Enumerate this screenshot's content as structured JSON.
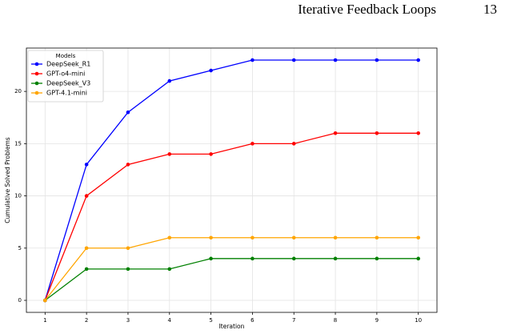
{
  "header": {
    "title": "Iterative Feedback Loops",
    "page": "13"
  },
  "chart_data": {
    "type": "line",
    "x_label": "Iteration",
    "y_label": "Cumulative Solved Problems",
    "x": [
      1,
      2,
      3,
      4,
      5,
      6,
      7,
      8,
      9,
      10
    ],
    "series": [
      {
        "name": "DeepSeek_R1",
        "color": "#0000ff",
        "values": [
          0,
          13,
          18,
          21,
          22,
          23,
          23,
          23,
          23,
          23
        ]
      },
      {
        "name": "GPT-o4-mini",
        "color": "#ff0000",
        "values": [
          0,
          10,
          13,
          14,
          14,
          15,
          15,
          16,
          16,
          16
        ]
      },
      {
        "name": "DeepSeek_V3",
        "color": "#008000",
        "values": [
          0,
          3,
          3,
          3,
          4,
          4,
          4,
          4,
          4,
          4
        ]
      },
      {
        "name": "GPT-4.1-mini",
        "color": "#ffa500",
        "values": [
          0,
          5,
          5,
          6,
          6,
          6,
          6,
          6,
          6,
          6
        ]
      }
    ],
    "legend_title": "Models",
    "legend": "upper left",
    "grid": true,
    "xlim": [
      0.55,
      10.45
    ],
    "xticks": [
      1,
      2,
      3,
      4,
      5,
      6,
      7,
      8,
      9,
      10
    ],
    "ylim": [
      -1.15,
      24.15
    ],
    "yticks": [
      0,
      5,
      10,
      15,
      20
    ]
  }
}
